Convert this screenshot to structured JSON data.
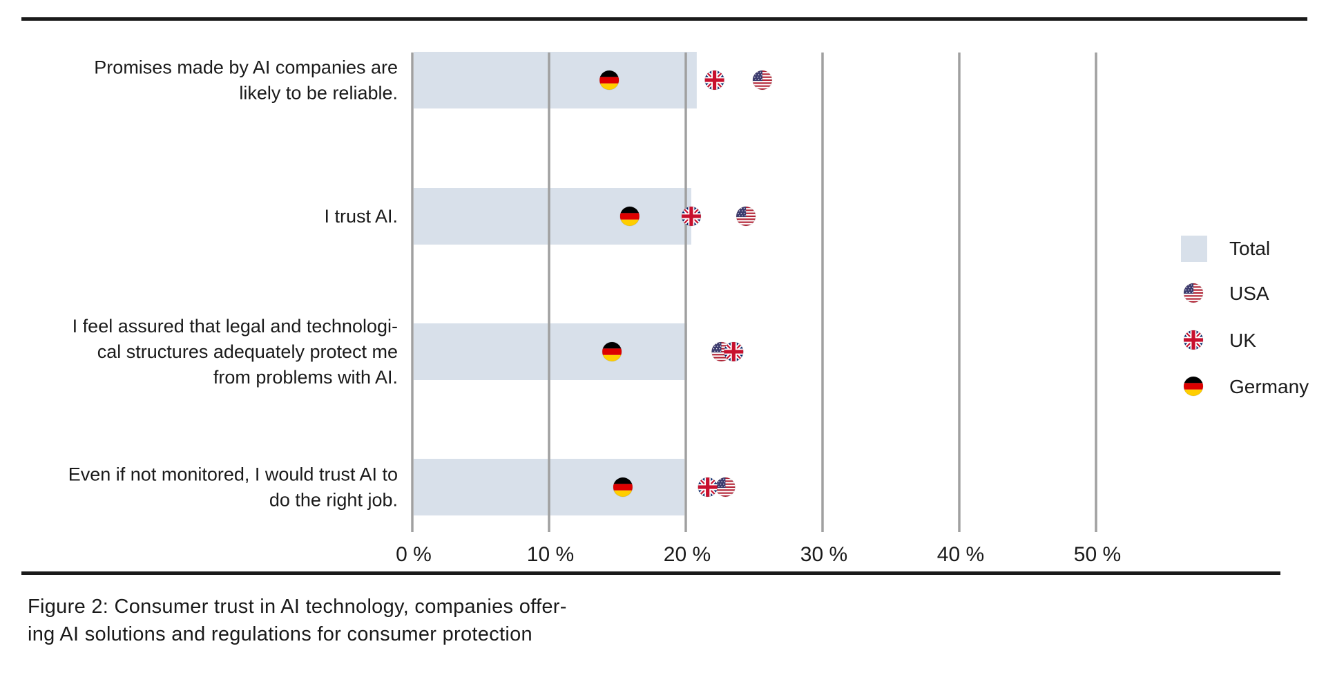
{
  "caption": {
    "line1": "Figure 2: Consumer trust in AI technology, companies offer-",
    "line2": "ing AI solutions and regulations for consumer protection"
  },
  "colors": {
    "bar": "#d8e0ea",
    "grid": "#a0a0a0",
    "rule": "#1a1a1a"
  },
  "icons": {
    "USA": "usa-flag-icon",
    "UK": "uk-flag-icon",
    "Germany": "germany-flag-icon"
  },
  "chart_data": {
    "type": "bar",
    "orientation": "horizontal",
    "categories": [
      [
        "Promises made by AI companies are",
        "likely to be reliable."
      ],
      [
        "I trust AI."
      ],
      [
        "I feel assured that legal and technologi-",
        "cal structures adequately protect me",
        "from problems with AI."
      ],
      [
        "Even if not monitored, I would trust AI to",
        "do the right job."
      ]
    ],
    "series": [
      {
        "name": "Total",
        "mark": "bar",
        "values": [
          20.8,
          20.4,
          20.1,
          19.9
        ]
      },
      {
        "name": "USA",
        "mark": "flag",
        "values": [
          25.6,
          24.4,
          22.6,
          22.9
        ]
      },
      {
        "name": "UK",
        "mark": "flag",
        "values": [
          22.1,
          20.4,
          23.5,
          21.6
        ]
      },
      {
        "name": "Germany",
        "mark": "flag",
        "values": [
          14.4,
          15.9,
          14.6,
          15.4
        ]
      }
    ],
    "xlim": [
      0,
      50
    ],
    "xticks": [
      0,
      10,
      20,
      30,
      40,
      50
    ],
    "xtick_labels": [
      "0 %",
      "10 %",
      "20 %",
      "30 %",
      "40 %",
      "50 %"
    ],
    "grid": true,
    "legend": {
      "position": "right",
      "entries": [
        "Total",
        "USA",
        "UK",
        "Germany"
      ]
    }
  }
}
